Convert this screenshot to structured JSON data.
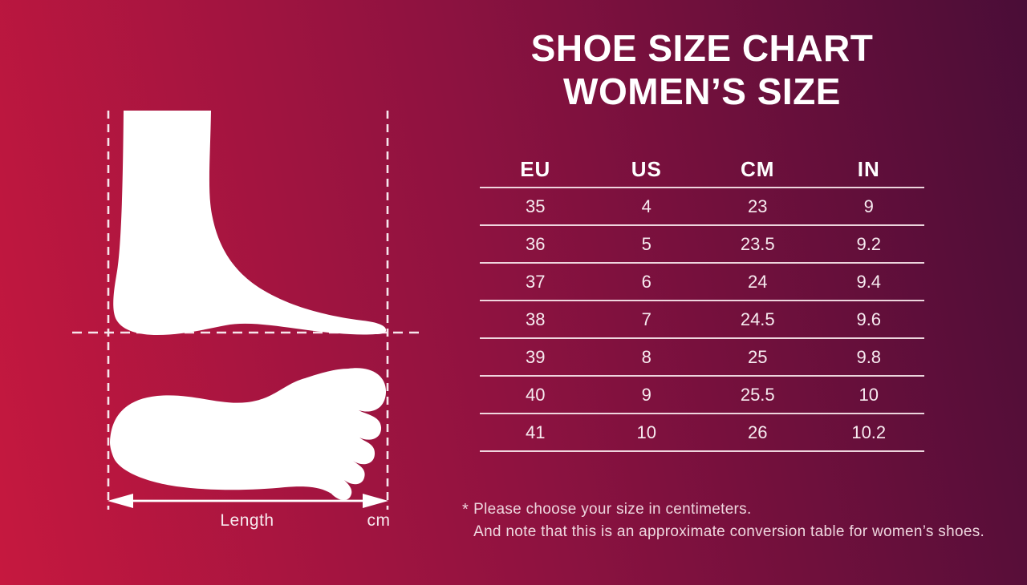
{
  "title": {
    "line1": "SHOE SIZE CHART",
    "line2": "WOMEN’S SIZE"
  },
  "size_table": {
    "headers": [
      "EU",
      "US",
      "CM",
      "IN"
    ],
    "rows": [
      [
        "35",
        "4",
        "23",
        "9"
      ],
      [
        "36",
        "5",
        "23.5",
        "9.2"
      ],
      [
        "37",
        "6",
        "24",
        "9.4"
      ],
      [
        "38",
        "7",
        "24.5",
        "9.6"
      ],
      [
        "39",
        "8",
        "25",
        "9.8"
      ],
      [
        "40",
        "9",
        "25.5",
        "10"
      ],
      [
        "41",
        "10",
        "26",
        "10.2"
      ]
    ]
  },
  "measurement_diagram": {
    "length_label": "Length",
    "unit_label": "cm"
  },
  "footnote": {
    "marker": "*",
    "line1": "Please choose your size in centimeters.",
    "line2": "And note that this is an approximate conversion table for women’s shoes."
  },
  "colors": {
    "background_left": "#c6183f",
    "background_mid": "#8e1240",
    "background_right": "#4a0d37",
    "title_text": "#ffffff",
    "table_text": "#f7ebf0",
    "rule_line": "#f8e6ec",
    "footnote_text": "#eed6de",
    "foot_silhouette": "#ffffff"
  },
  "chart_data": {
    "type": "table",
    "title": "SHOE SIZE CHART WOMEN'S SIZE",
    "columns": [
      "EU",
      "US",
      "CM",
      "IN"
    ],
    "rows": [
      [
        35,
        4,
        23,
        9
      ],
      [
        36,
        5,
        23.5,
        9.2
      ],
      [
        37,
        6,
        24,
        9.4
      ],
      [
        38,
        7,
        24.5,
        9.6
      ],
      [
        39,
        8,
        25,
        9.8
      ],
      [
        40,
        9,
        25.5,
        10
      ],
      [
        41,
        10,
        26,
        10.2
      ]
    ],
    "notes": [
      "Please choose your size in centimeters.",
      "And note that this is an approximate conversion table for women's shoes."
    ]
  }
}
